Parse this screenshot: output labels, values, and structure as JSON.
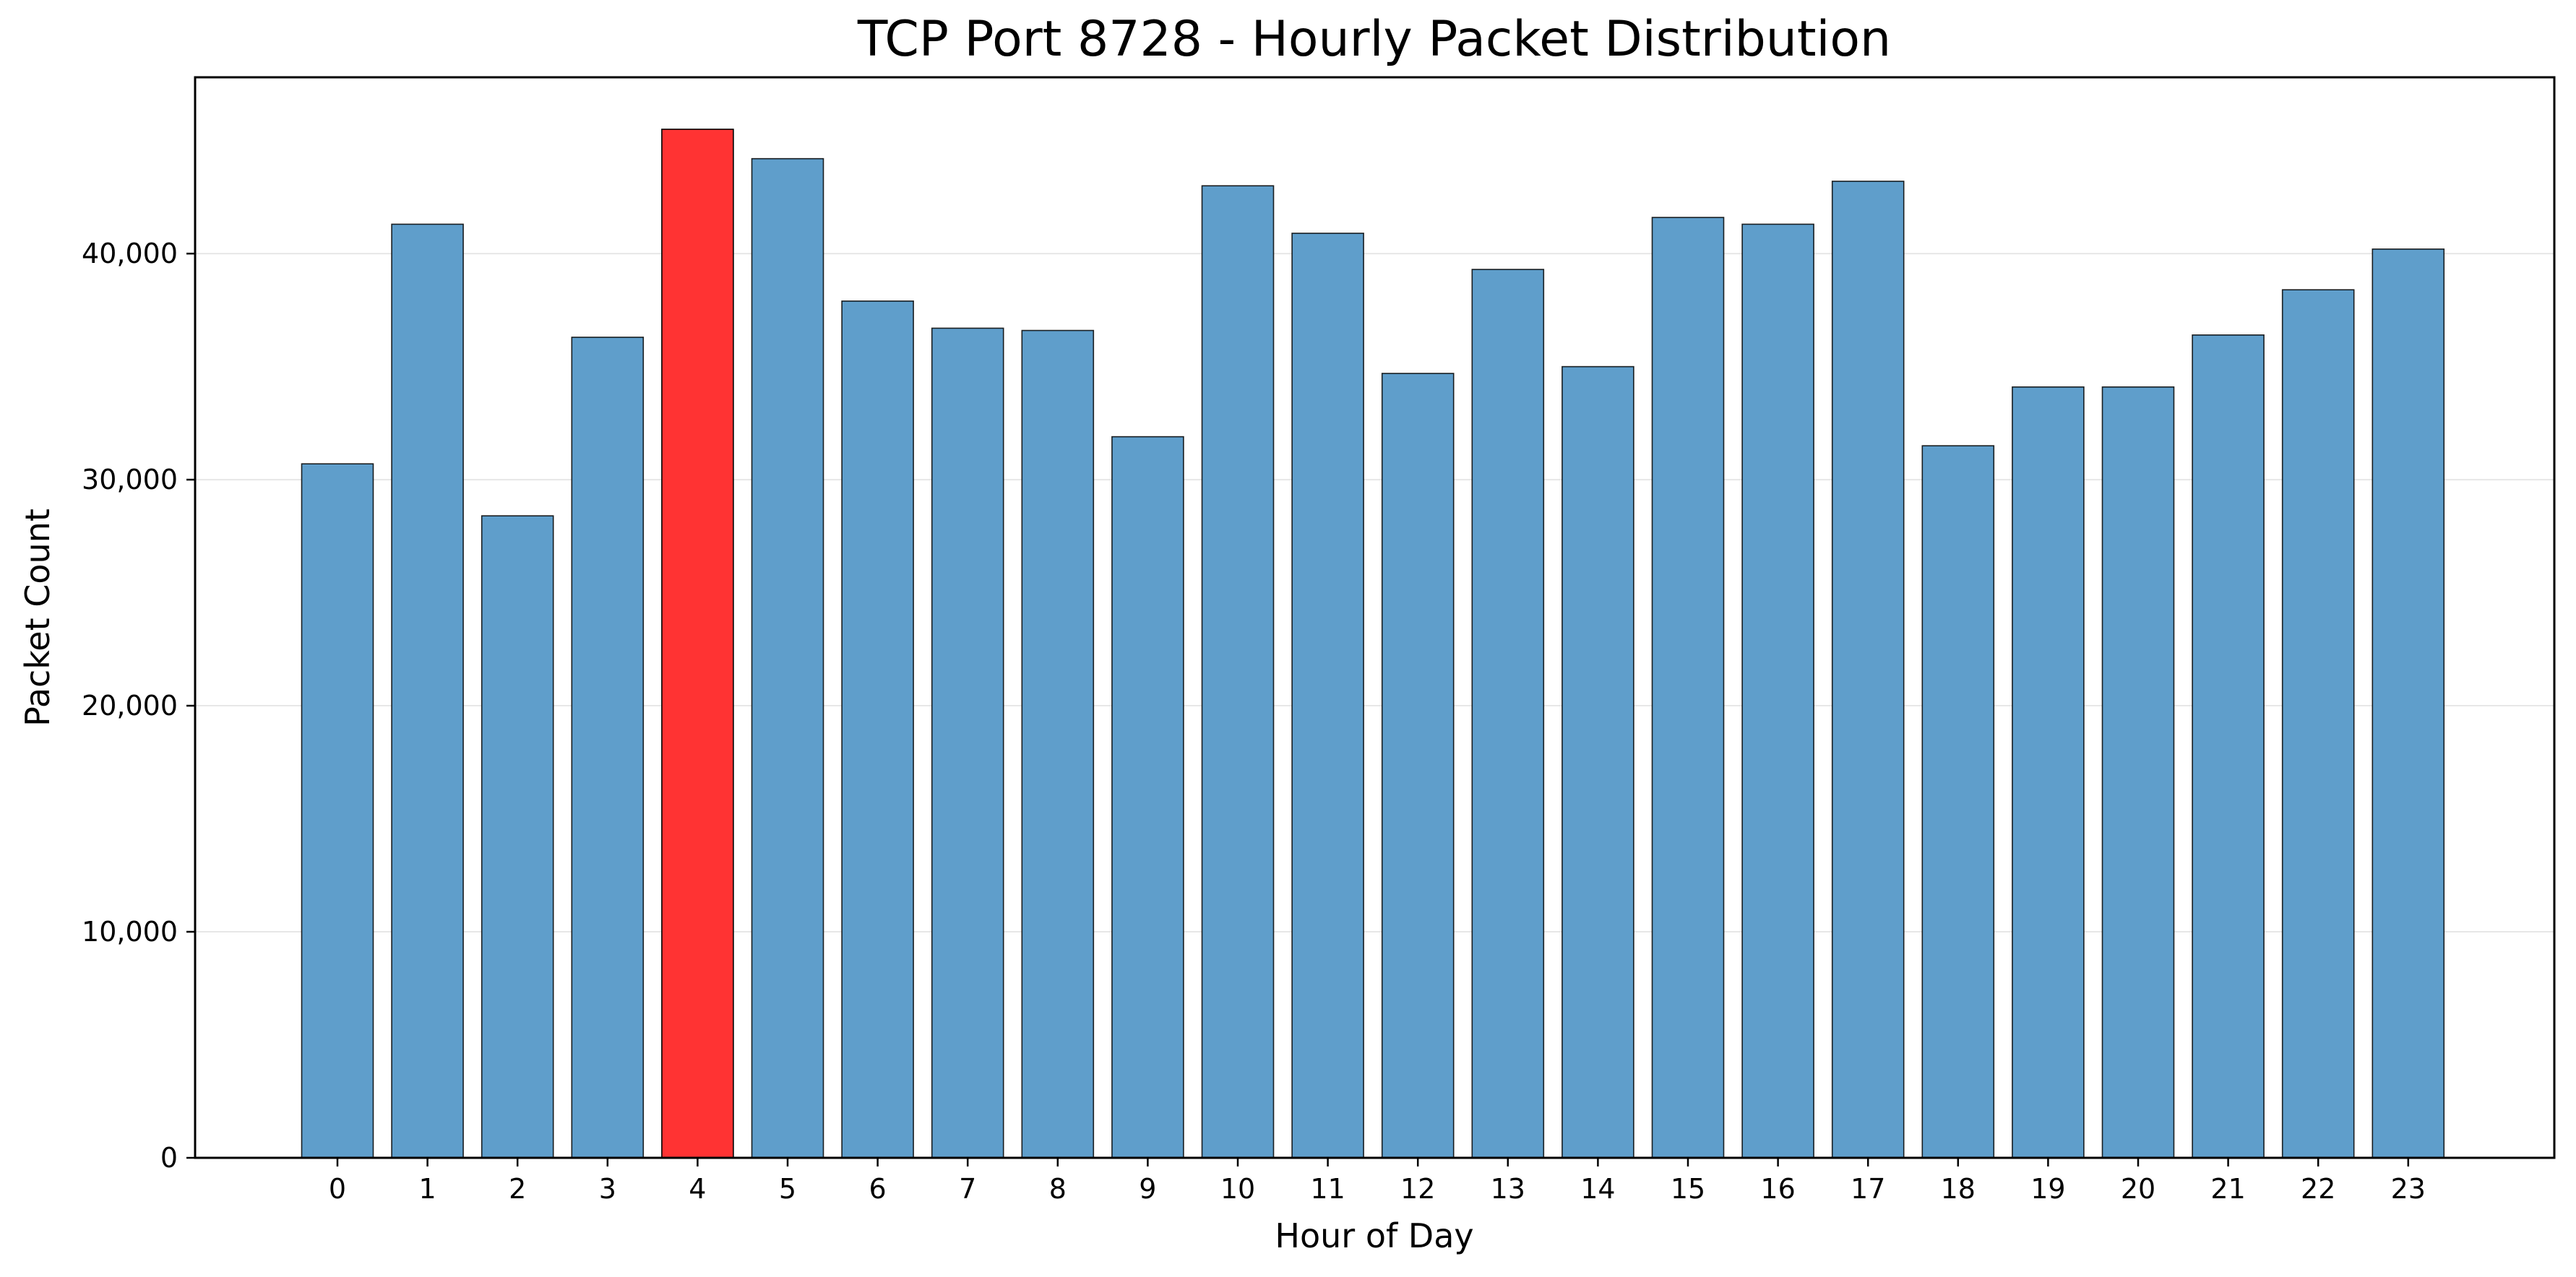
{
  "chart_data": {
    "type": "bar",
    "title": "TCP Port 8728 - Hourly Packet Distribution",
    "xlabel": "Hour of Day",
    "ylabel": "Packet Count",
    "categories": [
      "0",
      "1",
      "2",
      "3",
      "4",
      "5",
      "6",
      "7",
      "8",
      "9",
      "10",
      "11",
      "12",
      "13",
      "14",
      "15",
      "16",
      "17",
      "18",
      "19",
      "20",
      "21",
      "22",
      "23"
    ],
    "values": [
      30700,
      41300,
      28400,
      36300,
      45500,
      44200,
      37900,
      36700,
      36600,
      31900,
      43000,
      40900,
      34700,
      39300,
      35000,
      41600,
      41300,
      43200,
      31500,
      34100,
      34100,
      36400,
      38400,
      40200
    ],
    "highlight_index": 4,
    "ylim": [
      0,
      47800
    ],
    "yticks": [
      0,
      10000,
      20000,
      30000,
      40000
    ],
    "ytick_labels": [
      "0",
      "10,000",
      "20,000",
      "30,000",
      "40,000"
    ],
    "grid": "horizontal",
    "colors": {
      "bar": "#5f9ecb",
      "highlight": "#ff3333",
      "edge": "#000000",
      "grid": "#b0b0b0"
    }
  }
}
